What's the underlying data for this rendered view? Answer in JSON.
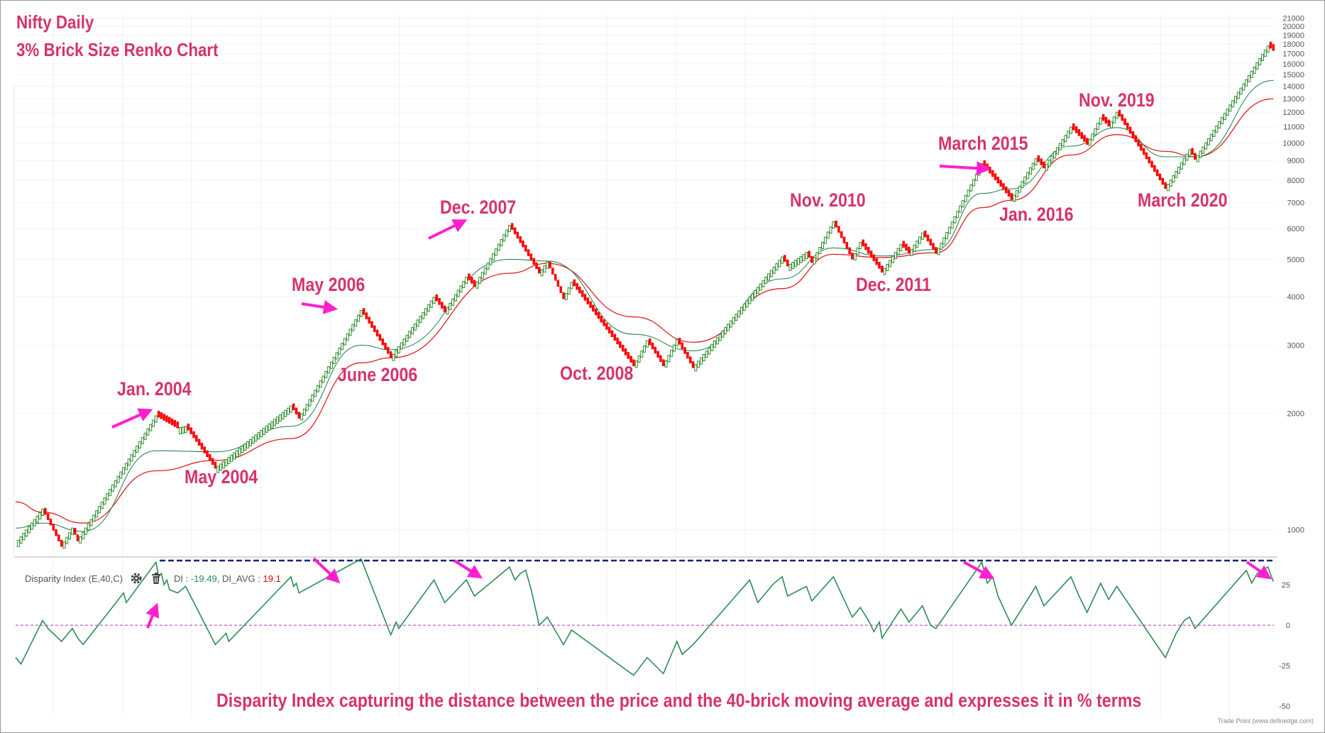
{
  "header": {
    "title": "Nifty Daily",
    "subtitle": "3% Brick Size Renko Chart"
  },
  "annotations": [
    {
      "id": "jan2004",
      "label": "Jan. 2004"
    },
    {
      "id": "may2004",
      "label": "May 2004"
    },
    {
      "id": "may2006",
      "label": "May 2006"
    },
    {
      "id": "jun2006",
      "label": "June 2006"
    },
    {
      "id": "dec2007",
      "label": "Dec. 2007"
    },
    {
      "id": "oct2008",
      "label": "Oct. 2008"
    },
    {
      "id": "nov2010",
      "label": "Nov. 2010"
    },
    {
      "id": "dec2011",
      "label": "Dec. 2011"
    },
    {
      "id": "mar2015",
      "label": "March 2015"
    },
    {
      "id": "jan2016",
      "label": "Jan. 2016"
    },
    {
      "id": "nov2019",
      "label": "Nov. 2019"
    },
    {
      "id": "mar2020",
      "label": "March 2020"
    }
  ],
  "indicator": {
    "name": "Disparity Index (E,40,C)",
    "di_label": "DI : ",
    "di_value": "-19.49",
    "di_avg_label": "DI_AVG : ",
    "di_avg_value": "19.1"
  },
  "footer": {
    "caption": "Disparity Index capturing the distance between the price and the 40-brick moving average and expresses it in % terms",
    "credit": "Trade Point (www.definedge.com)"
  },
  "colors": {
    "up_brick": "#2e8b2e",
    "down_brick": "#ff0000",
    "ma_green": "#2e8b57",
    "ma_red": "#e02020",
    "annotation": "#d6336c",
    "arrow": "#ff1fd0",
    "di_line": "#2e8b57",
    "di_reference": "#1a237e",
    "zero_line": "#c02cc0"
  },
  "icons": [
    "gear-icon",
    "trash-icon"
  ],
  "chart_data": [
    {
      "type": "renko",
      "brick_size_percent": 3,
      "scale": "log",
      "y_ticks": [
        1000,
        2000,
        3000,
        4000,
        5000,
        6000,
        7000,
        8000,
        9000,
        10000,
        11000,
        12000,
        13000,
        14000,
        15000,
        16000,
        17000,
        18000,
        19000,
        20000,
        21000
      ],
      "ylim": [
        850,
        21500
      ],
      "swings": [
        {
          "brick": 0,
          "price": 920
        },
        {
          "brick": 10,
          "price": 1130
        },
        {
          "brick": 17,
          "price": 905
        },
        {
          "brick": 21,
          "price": 1010
        },
        {
          "brick": 23,
          "price": 935
        },
        {
          "brick": 52,
          "price": 1970
        },
        {
          "brick": 60,
          "price": 1830
        },
        {
          "brick": 63,
          "price": 1850
        },
        {
          "brick": 74,
          "price": 1440
        },
        {
          "brick": 102,
          "price": 2090
        },
        {
          "brick": 105,
          "price": 1940
        },
        {
          "brick": 128,
          "price": 3690
        },
        {
          "brick": 139,
          "price": 2780
        },
        {
          "brick": 155,
          "price": 3990
        },
        {
          "brick": 159,
          "price": 3650
        },
        {
          "brick": 167,
          "price": 4500
        },
        {
          "brick": 170,
          "price": 4250
        },
        {
          "brick": 183,
          "price": 6120
        },
        {
          "brick": 194,
          "price": 4600
        },
        {
          "brick": 197,
          "price": 4920
        },
        {
          "brick": 203,
          "price": 3950
        },
        {
          "brick": 206,
          "price": 4360
        },
        {
          "brick": 229,
          "price": 2650
        },
        {
          "brick": 234,
          "price": 3080
        },
        {
          "brick": 240,
          "price": 2650
        },
        {
          "brick": 245,
          "price": 3100
        },
        {
          "brick": 251,
          "price": 2620
        },
        {
          "brick": 284,
          "price": 5070
        },
        {
          "brick": 286,
          "price": 4800
        },
        {
          "brick": 293,
          "price": 5210
        },
        {
          "brick": 295,
          "price": 4900
        },
        {
          "brick": 303,
          "price": 6250
        },
        {
          "brick": 310,
          "price": 5000
        },
        {
          "brick": 313,
          "price": 5530
        },
        {
          "brick": 321,
          "price": 4630
        },
        {
          "brick": 328,
          "price": 5460
        },
        {
          "brick": 331,
          "price": 5180
        },
        {
          "brick": 336,
          "price": 5850
        },
        {
          "brick": 341,
          "price": 5170
        },
        {
          "brick": 358,
          "price": 8840
        },
        {
          "brick": 369,
          "price": 7130
        },
        {
          "brick": 378,
          "price": 9100
        },
        {
          "brick": 381,
          "price": 8600
        },
        {
          "brick": 391,
          "price": 10980
        },
        {
          "brick": 397,
          "price": 9900
        },
        {
          "brick": 402,
          "price": 11600
        },
        {
          "brick": 405,
          "price": 11040
        },
        {
          "brick": 408,
          "price": 12000
        },
        {
          "brick": 426,
          "price": 7610
        },
        {
          "brick": 435,
          "price": 9600
        },
        {
          "brick": 437,
          "price": 9050
        },
        {
          "brick": 464,
          "price": 17800
        },
        {
          "brick": 466,
          "price": 17300
        }
      ],
      "ma_green_approx": [
        {
          "brick": 0,
          "price": 1010
        },
        {
          "brick": 10,
          "price": 1040
        },
        {
          "brick": 25,
          "price": 990
        },
        {
          "brick": 52,
          "price": 1600
        },
        {
          "brick": 74,
          "price": 1590
        },
        {
          "brick": 102,
          "price": 1850
        },
        {
          "brick": 128,
          "price": 3000
        },
        {
          "brick": 139,
          "price": 2920
        },
        {
          "brick": 183,
          "price": 5000
        },
        {
          "brick": 197,
          "price": 4950
        },
        {
          "brick": 229,
          "price": 3200
        },
        {
          "brick": 251,
          "price": 2900
        },
        {
          "brick": 284,
          "price": 4450
        },
        {
          "brick": 303,
          "price": 5350
        },
        {
          "brick": 321,
          "price": 5100
        },
        {
          "brick": 341,
          "price": 5300
        },
        {
          "brick": 358,
          "price": 7400
        },
        {
          "brick": 369,
          "price": 7600
        },
        {
          "brick": 391,
          "price": 9800
        },
        {
          "brick": 408,
          "price": 10950
        },
        {
          "brick": 426,
          "price": 9200
        },
        {
          "brick": 437,
          "price": 9200
        },
        {
          "brick": 466,
          "price": 14500
        }
      ],
      "ma_red_approx": [
        {
          "brick": 0,
          "price": 1180
        },
        {
          "brick": 10,
          "price": 1110
        },
        {
          "brick": 25,
          "price": 1040
        },
        {
          "brick": 52,
          "price": 1420
        },
        {
          "brick": 74,
          "price": 1510
        },
        {
          "brick": 102,
          "price": 1720
        },
        {
          "brick": 128,
          "price": 2700
        },
        {
          "brick": 139,
          "price": 2780
        },
        {
          "brick": 183,
          "price": 4600
        },
        {
          "brick": 197,
          "price": 4880
        },
        {
          "brick": 229,
          "price": 3550
        },
        {
          "brick": 251,
          "price": 3050
        },
        {
          "brick": 284,
          "price": 4200
        },
        {
          "brick": 303,
          "price": 5150
        },
        {
          "brick": 321,
          "price": 5050
        },
        {
          "brick": 341,
          "price": 5200
        },
        {
          "brick": 358,
          "price": 6800
        },
        {
          "brick": 369,
          "price": 7100
        },
        {
          "brick": 391,
          "price": 9300
        },
        {
          "brick": 408,
          "price": 10500
        },
        {
          "brick": 426,
          "price": 9500
        },
        {
          "brick": 437,
          "price": 9200
        },
        {
          "brick": 466,
          "price": 13000
        }
      ]
    },
    {
      "type": "line",
      "name": "Disparity Index (E,40,C)",
      "y_ticks": [
        25,
        0,
        -25,
        -50
      ],
      "ylim": [
        -50,
        40
      ],
      "reference_level": 40,
      "zero_level": 0,
      "points": [
        {
          "brick": 0,
          "value": -20
        },
        {
          "brick": 2,
          "value": -24
        },
        {
          "brick": 10,
          "value": 3
        },
        {
          "brick": 12,
          "value": -2
        },
        {
          "brick": 17,
          "value": -10
        },
        {
          "brick": 21,
          "value": -2
        },
        {
          "brick": 23,
          "value": -8
        },
        {
          "brick": 25,
          "value": -12
        },
        {
          "brick": 40,
          "value": 20
        },
        {
          "brick": 41,
          "value": 14
        },
        {
          "brick": 52,
          "value": 39
        },
        {
          "brick": 53,
          "value": 30
        },
        {
          "brick": 54,
          "value": 32
        },
        {
          "brick": 55,
          "value": 25
        },
        {
          "brick": 56,
          "value": 28
        },
        {
          "brick": 57,
          "value": 22
        },
        {
          "brick": 60,
          "value": 20
        },
        {
          "brick": 63,
          "value": 24
        },
        {
          "brick": 74,
          "value": -12
        },
        {
          "brick": 78,
          "value": -5
        },
        {
          "brick": 79,
          "value": -10
        },
        {
          "brick": 102,
          "value": 30
        },
        {
          "brick": 103,
          "value": 24
        },
        {
          "brick": 104,
          "value": 26
        },
        {
          "brick": 105,
          "value": 20
        },
        {
          "brick": 128,
          "value": 41
        },
        {
          "brick": 139,
          "value": -6
        },
        {
          "brick": 141,
          "value": 2
        },
        {
          "brick": 142,
          "value": -2
        },
        {
          "brick": 155,
          "value": 28
        },
        {
          "brick": 159,
          "value": 14
        },
        {
          "brick": 167,
          "value": 28
        },
        {
          "brick": 170,
          "value": 18
        },
        {
          "brick": 183,
          "value": 36
        },
        {
          "brick": 185,
          "value": 28
        },
        {
          "brick": 187,
          "value": 32
        },
        {
          "brick": 189,
          "value": 34
        },
        {
          "brick": 191,
          "value": 22
        },
        {
          "brick": 194,
          "value": 0
        },
        {
          "brick": 197,
          "value": 5
        },
        {
          "brick": 203,
          "value": -12
        },
        {
          "brick": 206,
          "value": -3
        },
        {
          "brick": 229,
          "value": -31
        },
        {
          "brick": 234,
          "value": -20
        },
        {
          "brick": 240,
          "value": -30
        },
        {
          "brick": 245,
          "value": -10
        },
        {
          "brick": 247,
          "value": -18
        },
        {
          "brick": 251,
          "value": -12
        },
        {
          "brick": 272,
          "value": 28
        },
        {
          "brick": 275,
          "value": 14
        },
        {
          "brick": 281,
          "value": 26
        },
        {
          "brick": 284,
          "value": 30
        },
        {
          "brick": 286,
          "value": 18
        },
        {
          "brick": 293,
          "value": 24
        },
        {
          "brick": 295,
          "value": 15
        },
        {
          "brick": 303,
          "value": 30
        },
        {
          "brick": 310,
          "value": 5
        },
        {
          "brick": 313,
          "value": 11
        },
        {
          "brick": 316,
          "value": 3
        },
        {
          "brick": 318,
          "value": -4
        },
        {
          "brick": 320,
          "value": 2
        },
        {
          "brick": 321,
          "value": -8
        },
        {
          "brick": 326,
          "value": 5
        },
        {
          "brick": 328,
          "value": 10
        },
        {
          "brick": 331,
          "value": 2
        },
        {
          "brick": 336,
          "value": 12
        },
        {
          "brick": 339,
          "value": 0
        },
        {
          "brick": 341,
          "value": -2
        },
        {
          "brick": 358,
          "value": 39
        },
        {
          "brick": 360,
          "value": 26
        },
        {
          "brick": 362,
          "value": 30
        },
        {
          "brick": 364,
          "value": 18
        },
        {
          "brick": 369,
          "value": 0
        },
        {
          "brick": 378,
          "value": 24
        },
        {
          "brick": 381,
          "value": 12
        },
        {
          "brick": 391,
          "value": 30
        },
        {
          "brick": 394,
          "value": 18
        },
        {
          "brick": 397,
          "value": 8
        },
        {
          "brick": 402,
          "value": 26
        },
        {
          "brick": 405,
          "value": 16
        },
        {
          "brick": 408,
          "value": 24
        },
        {
          "brick": 426,
          "value": -20
        },
        {
          "brick": 430,
          "value": -5
        },
        {
          "brick": 433,
          "value": 3
        },
        {
          "brick": 435,
          "value": 5
        },
        {
          "brick": 437,
          "value": -2
        },
        {
          "brick": 456,
          "value": 34
        },
        {
          "brick": 458,
          "value": 26
        },
        {
          "brick": 460,
          "value": 32
        },
        {
          "brick": 464,
          "value": 36
        },
        {
          "brick": 466,
          "value": 27
        }
      ]
    }
  ]
}
